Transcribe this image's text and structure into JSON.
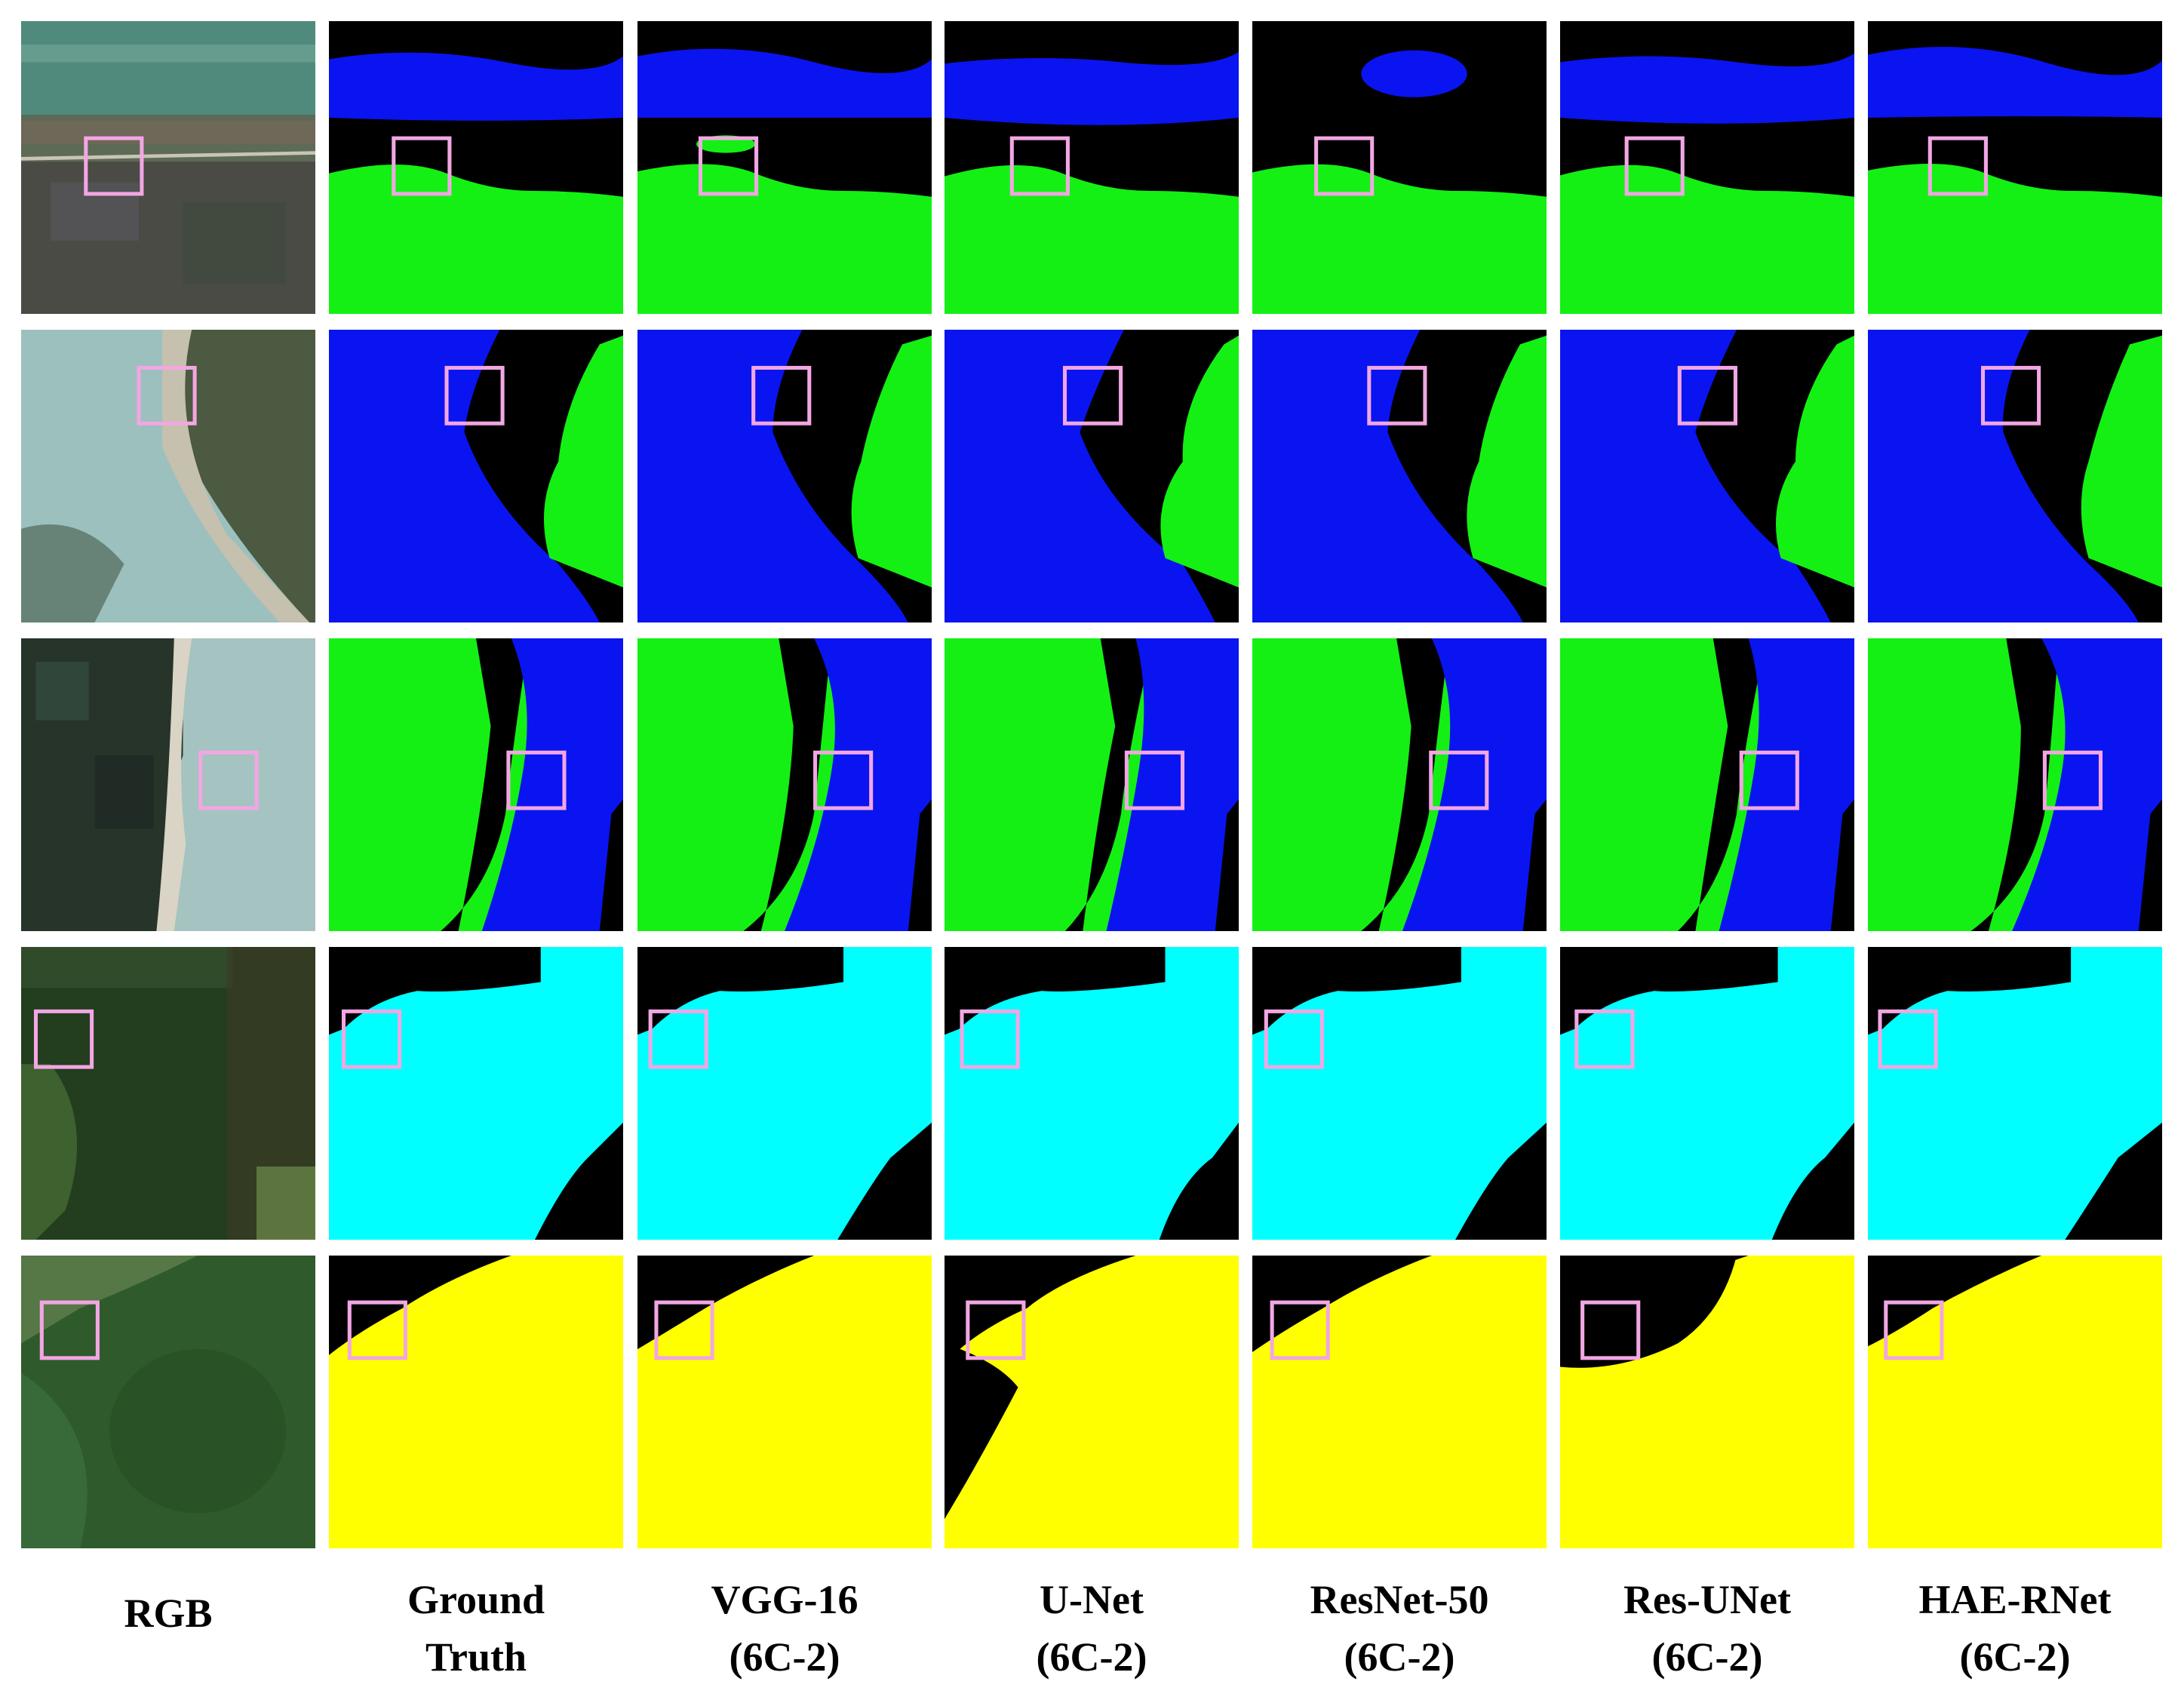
{
  "columns": [
    {
      "id": "rgb",
      "lines": [
        "RGB"
      ]
    },
    {
      "id": "gt",
      "lines": [
        "Ground",
        "Truth"
      ]
    },
    {
      "id": "vgg",
      "lines": [
        "VGG-16",
        "(6C-2)"
      ]
    },
    {
      "id": "unet",
      "lines": [
        "U-Net",
        "(6C-2)"
      ]
    },
    {
      "id": "resnet",
      "lines": [
        "ResNet-50",
        "(6C-2)"
      ]
    },
    {
      "id": "resunet",
      "lines": [
        "Res-UNet",
        "(6C-2)"
      ]
    },
    {
      "id": "haernet",
      "lines": [
        "HAE-RNet",
        "(6C-2)"
      ]
    }
  ],
  "colors": {
    "background": "#000000",
    "water": "#0a14f0",
    "vegetation": "#14f014",
    "forest": "#00ffff",
    "cropland": "#ffff00",
    "highlight_box": "#f2a6e3",
    "tile_border": "#3b4a6b"
  },
  "rows": [
    {
      "scene": "river-farmland",
      "classes": [
        "black",
        "blue",
        "green"
      ]
    },
    {
      "scene": "river-bend",
      "classes": [
        "black",
        "blue",
        "green"
      ]
    },
    {
      "scene": "river-shore",
      "classes": [
        "black",
        "blue",
        "green"
      ]
    },
    {
      "scene": "forest",
      "classes": [
        "black",
        "cyan"
      ]
    },
    {
      "scene": "hillside",
      "classes": [
        "black",
        "yellow"
      ]
    }
  ]
}
